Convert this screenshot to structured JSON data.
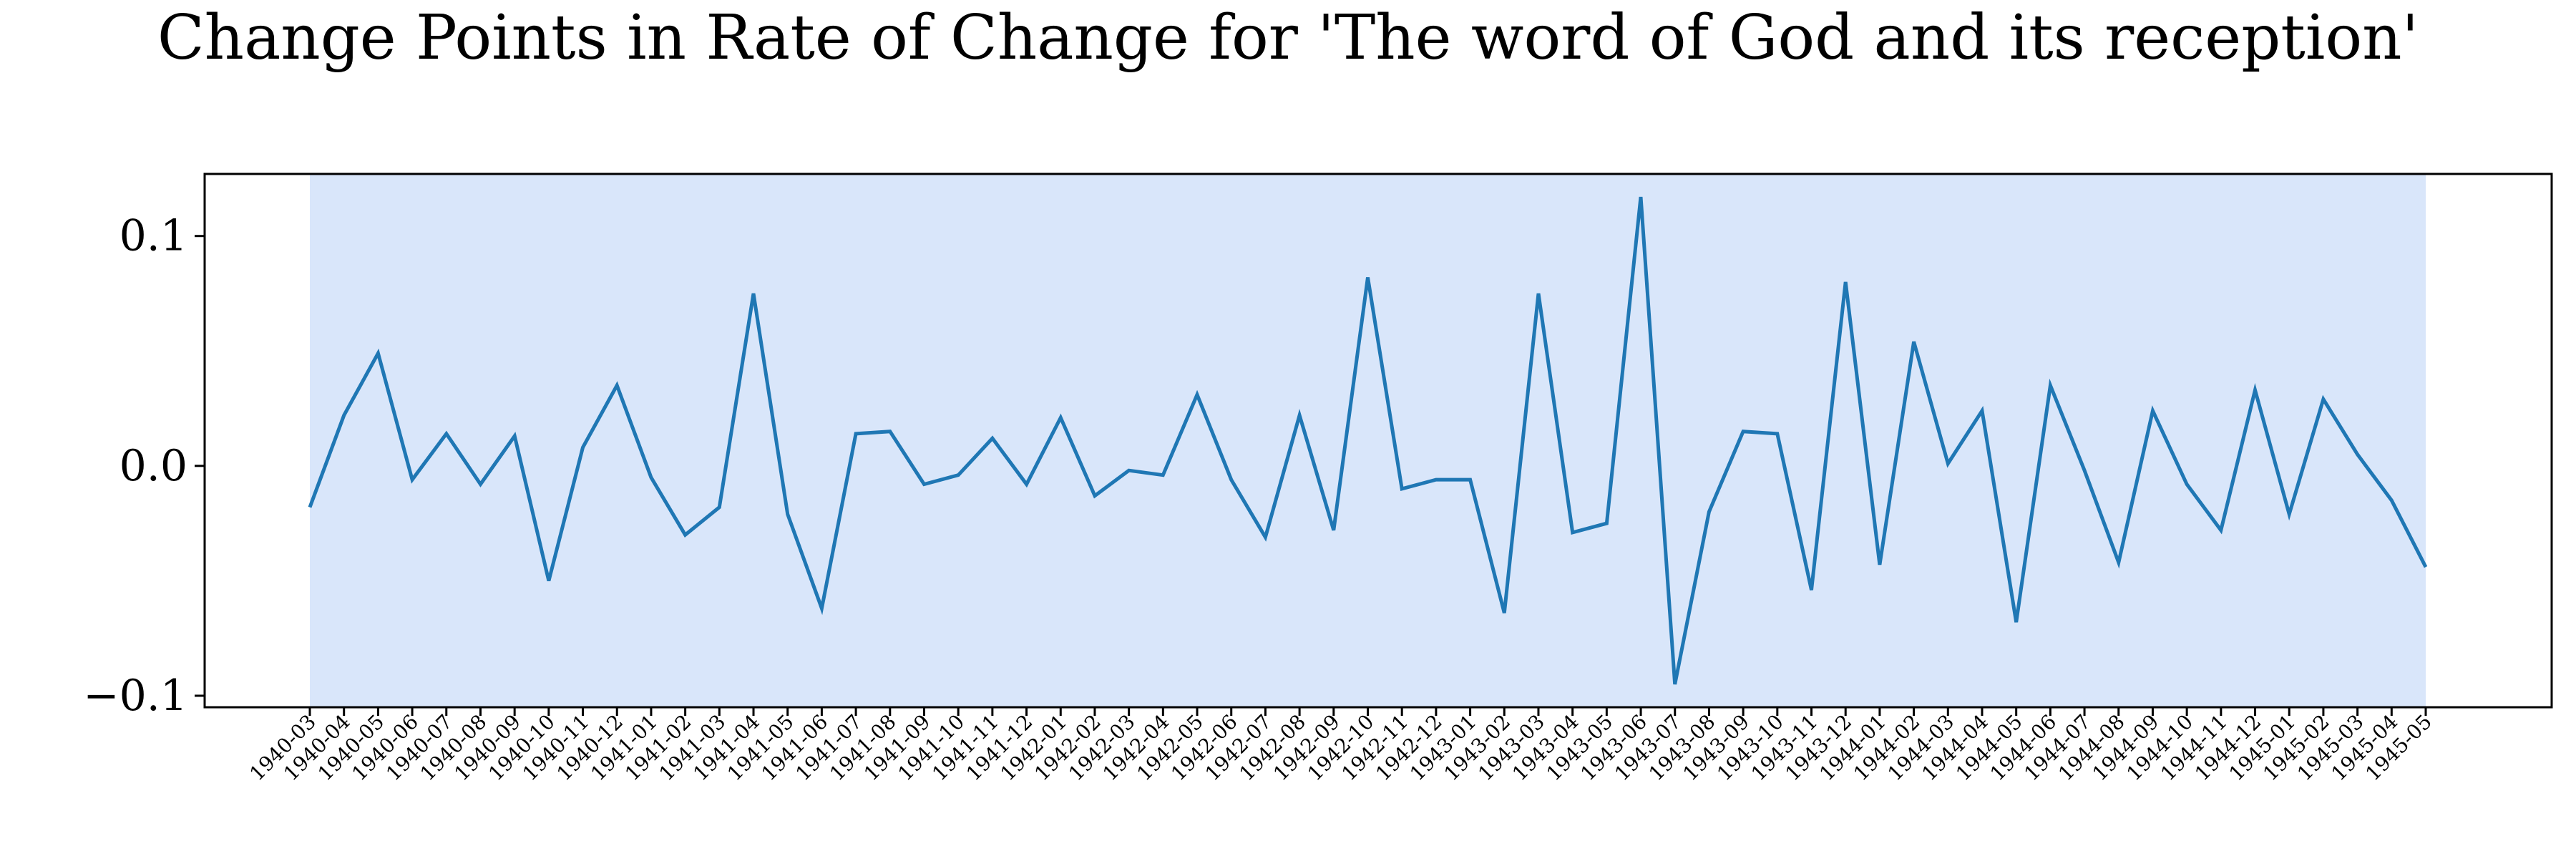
{
  "chart_data": {
    "type": "line",
    "title": "Change Points in Rate of Change for 'The word of God and its reception'",
    "xlabel": "",
    "ylabel": "",
    "ylim": [
      -0.105,
      0.127
    ],
    "yticks": [
      0.1,
      0.0,
      -0.1
    ],
    "ytick_labels": [
      "0.1",
      "0.0",
      "−0.1"
    ],
    "grid": false,
    "legend": "none",
    "colors": {
      "line": "#1f77b4",
      "span": "#d9e6fa",
      "axes": "#000000"
    },
    "shaded_spans": [
      {
        "from": "1940-03",
        "to": "1945-05"
      }
    ],
    "x": [
      "1940-03",
      "1940-04",
      "1940-05",
      "1940-06",
      "1940-07",
      "1940-08",
      "1940-09",
      "1940-10",
      "1940-11",
      "1940-12",
      "1941-01",
      "1941-02",
      "1941-03",
      "1941-04",
      "1941-05",
      "1941-06",
      "1941-07",
      "1941-08",
      "1941-09",
      "1941-10",
      "1941-11",
      "1941-12",
      "1942-01",
      "1942-02",
      "1942-03",
      "1942-04",
      "1942-05",
      "1942-06",
      "1942-07",
      "1942-08",
      "1942-09",
      "1942-10",
      "1942-11",
      "1942-12",
      "1943-01",
      "1943-02",
      "1943-03",
      "1943-04",
      "1943-05",
      "1943-06",
      "1943-07",
      "1943-08",
      "1943-09",
      "1943-10",
      "1943-11",
      "1943-12",
      "1944-01",
      "1944-02",
      "1944-03",
      "1944-04",
      "1944-05",
      "1944-06",
      "1944-07",
      "1944-08",
      "1944-09",
      "1944-10",
      "1944-11",
      "1944-12",
      "1945-01",
      "1945-02",
      "1945-03",
      "1945-04",
      "1945-05"
    ],
    "series": [
      {
        "values": [
          -0.018,
          0.022,
          0.049,
          -0.006,
          0.014,
          -0.008,
          0.013,
          -0.05,
          0.008,
          0.035,
          -0.005,
          -0.03,
          -0.018,
          0.075,
          -0.021,
          -0.062,
          0.014,
          0.015,
          -0.008,
          -0.004,
          0.012,
          -0.008,
          0.021,
          -0.013,
          -0.002,
          -0.004,
          0.031,
          -0.006,
          -0.031,
          0.022,
          -0.028,
          0.082,
          -0.01,
          -0.006,
          -0.006,
          -0.064,
          0.075,
          -0.029,
          -0.025,
          0.117,
          -0.095,
          -0.02,
          0.015,
          0.014,
          -0.054,
          0.08,
          -0.043,
          0.054,
          0.001,
          0.024,
          -0.068,
          0.035,
          -0.002,
          -0.042,
          0.024,
          -0.008,
          -0.028,
          0.033,
          -0.021,
          0.029,
          0.005,
          -0.015,
          -0.044
        ]
      }
    ]
  }
}
